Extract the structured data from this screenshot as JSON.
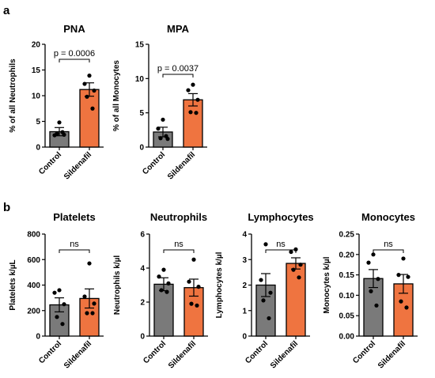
{
  "panels": [
    {
      "letter": "a"
    },
    {
      "letter": "b"
    }
  ],
  "colors": {
    "control": "#7a7a7a",
    "sildenafil": "#ef7440",
    "ink": "#000000"
  },
  "chart_data": [
    {
      "type": "bar",
      "panel": "a",
      "title": "PNA",
      "ylabel": "% of all Neutrophils",
      "ylim": [
        0,
        20
      ],
      "yticks": [
        "0",
        "5",
        "10",
        "15",
        "20"
      ],
      "categories": [
        "Control",
        "Sildenafil"
      ],
      "values": [
        3.0,
        11.2
      ],
      "errors": [
        0.8,
        1.3
      ],
      "points": [
        [
          4.8,
          2.3,
          2.4,
          2.6,
          2.9
        ],
        [
          13.9,
          12.3,
          11.0,
          9.8,
          7.5
        ]
      ],
      "annotation": "p = 0.0006"
    },
    {
      "type": "bar",
      "panel": "a",
      "title": "MPA",
      "ylabel": "% of all Monocytes",
      "ylim": [
        0,
        15
      ],
      "yticks": [
        "0",
        "5",
        "10",
        "15"
      ],
      "categories": [
        "Control",
        "Sildenafil"
      ],
      "values": [
        2.2,
        6.9
      ],
      "errors": [
        0.7,
        0.9
      ],
      "points": [
        [
          4.0,
          2.7,
          1.2,
          1.3,
          1.6
        ],
        [
          9.1,
          8.3,
          6.9,
          5.1,
          5.0
        ]
      ],
      "annotation": "p = 0.0037"
    },
    {
      "type": "bar",
      "panel": "b",
      "title": "Platelets",
      "ylabel": "Platelets k/µL",
      "ylim": [
        0,
        800
      ],
      "yticks": [
        "0",
        "200",
        "400",
        "600",
        "800"
      ],
      "categories": [
        "Control",
        "Sildenafil"
      ],
      "values": [
        245,
        295
      ],
      "errors": [
        55,
        75
      ],
      "points": [
        [
          360,
          340,
          250,
          150,
          95
        ],
        [
          570,
          310,
          255,
          180,
          180
        ]
      ],
      "annotation": "ns"
    },
    {
      "type": "bar",
      "panel": "b",
      "title": "Neutrophils",
      "ylabel": "Neutrophils k/µl",
      "ylim": [
        0,
        6
      ],
      "yticks": [
        "0",
        "2",
        "4",
        "6"
      ],
      "categories": [
        "Control",
        "Sildenafil"
      ],
      "values": [
        3.05,
        2.85
      ],
      "errors": [
        0.38,
        0.5
      ],
      "points": [
        [
          3.9,
          3.5,
          3.1,
          2.7,
          2.6
        ],
        [
          4.5,
          3.2,
          2.9,
          1.9,
          1.8
        ]
      ],
      "annotation": "ns"
    },
    {
      "type": "bar",
      "panel": "b",
      "title": "Lymphocytes",
      "ylabel": "Lymphocytes k/µl",
      "ylim": [
        0,
        4
      ],
      "yticks": [
        "0",
        "1",
        "2",
        "3",
        "4"
      ],
      "categories": [
        "Control",
        "Sildenafil"
      ],
      "values": [
        2.0,
        2.85
      ],
      "errors": [
        0.45,
        0.22
      ],
      "points": [
        [
          3.6,
          2.2,
          1.7,
          1.4,
          0.7
        ],
        [
          3.4,
          3.3,
          2.8,
          2.6,
          2.3
        ]
      ],
      "annotation": "ns"
    },
    {
      "type": "bar",
      "panel": "b",
      "title": "Monocytes",
      "ylabel": "Monocytes k/µl",
      "ylim": [
        0,
        0.25
      ],
      "yticks": [
        "0.00",
        "0.05",
        "0.10",
        "0.15",
        "0.20",
        "0.25"
      ],
      "categories": [
        "Control",
        "Sildenafil"
      ],
      "values": [
        0.141,
        0.128
      ],
      "errors": [
        0.022,
        0.023
      ],
      "points": [
        [
          0.2,
          0.18,
          0.14,
          0.11,
          0.075
        ],
        [
          0.19,
          0.15,
          0.145,
          0.085,
          0.07
        ]
      ],
      "annotation": "ns"
    }
  ]
}
